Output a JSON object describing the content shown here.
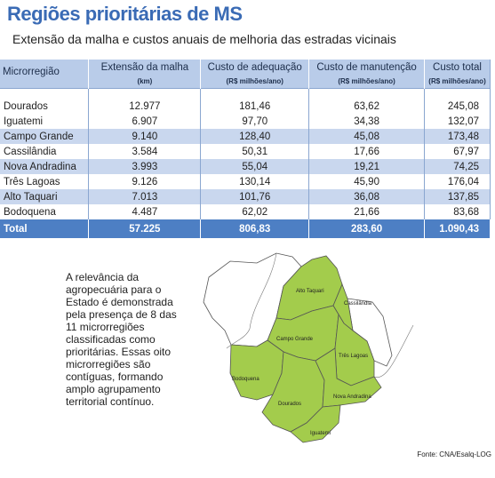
{
  "header": {
    "title": "Regiões prioritárias de MS",
    "subtitle": "Extensão da malha e custos anuais de melhoria das estradas vicinais"
  },
  "table": {
    "columns": [
      {
        "label": "Microrregião",
        "unit": ""
      },
      {
        "label": "Extensão da malha",
        "unit": "(km)"
      },
      {
        "label": "Custo de adequação",
        "unit": "(R$ milhões/ano)"
      },
      {
        "label": "Custo de manutenção",
        "unit": "(R$ milhões/ano)"
      },
      {
        "label": "Custo total",
        "unit": "(R$ milhões/ano)"
      }
    ],
    "rows": [
      {
        "name": "Dourados",
        "extensao": "12.977",
        "adequacao": "181,46",
        "manutencao": "63,62",
        "total": "245,08"
      },
      {
        "name": "Iguatemi",
        "extensao": "6.907",
        "adequacao": "97,70",
        "manutencao": "34,38",
        "total": "132,07"
      },
      {
        "name": "Campo Grande",
        "extensao": "9.140",
        "adequacao": "128,40",
        "manutencao": "45,08",
        "total": "173,48"
      },
      {
        "name": "Cassilândia",
        "extensao": "3.584",
        "adequacao": "50,31",
        "manutencao": "17,66",
        "total": "67,97"
      },
      {
        "name": "Nova Andradina",
        "extensao": "3.993",
        "adequacao": "55,04",
        "manutencao": "19,21",
        "total": "74,25"
      },
      {
        "name": "Três Lagoas",
        "extensao": "9.126",
        "adequacao": "130,14",
        "manutencao": "45,90",
        "total": "176,04"
      },
      {
        "name": "Alto Taquari",
        "extensao": "7.013",
        "adequacao": "101,76",
        "manutencao": "36,08",
        "total": "137,85"
      },
      {
        "name": "Bodoquena",
        "extensao": "4.487",
        "adequacao": "62,02",
        "manutencao": "21,66",
        "total": "83,68"
      }
    ],
    "total": {
      "name": "Total",
      "extensao": "57.225",
      "adequacao": "806,83",
      "manutencao": "283,60",
      "total": "1.090,43"
    }
  },
  "description": "A relevância da agropecuária para o Estado é demonstrada pela presença de 8 das 11 microrregiões classificadas como prioritárias. Essas oito microrregiões são contíguas, formando amplo agrupamento territorial contínuo.",
  "map": {
    "labels": [
      "Alto Taquari",
      "Cassilândia",
      "Campo Grande",
      "Três Lagoas",
      "Bodoquena",
      "Dourados",
      "Nova Andradina",
      "Iguatemi"
    ],
    "highlight_color": "#a3cc4c",
    "outline_color": "#555555"
  },
  "source": "Fonte: CNA/Esalq-LOG"
}
